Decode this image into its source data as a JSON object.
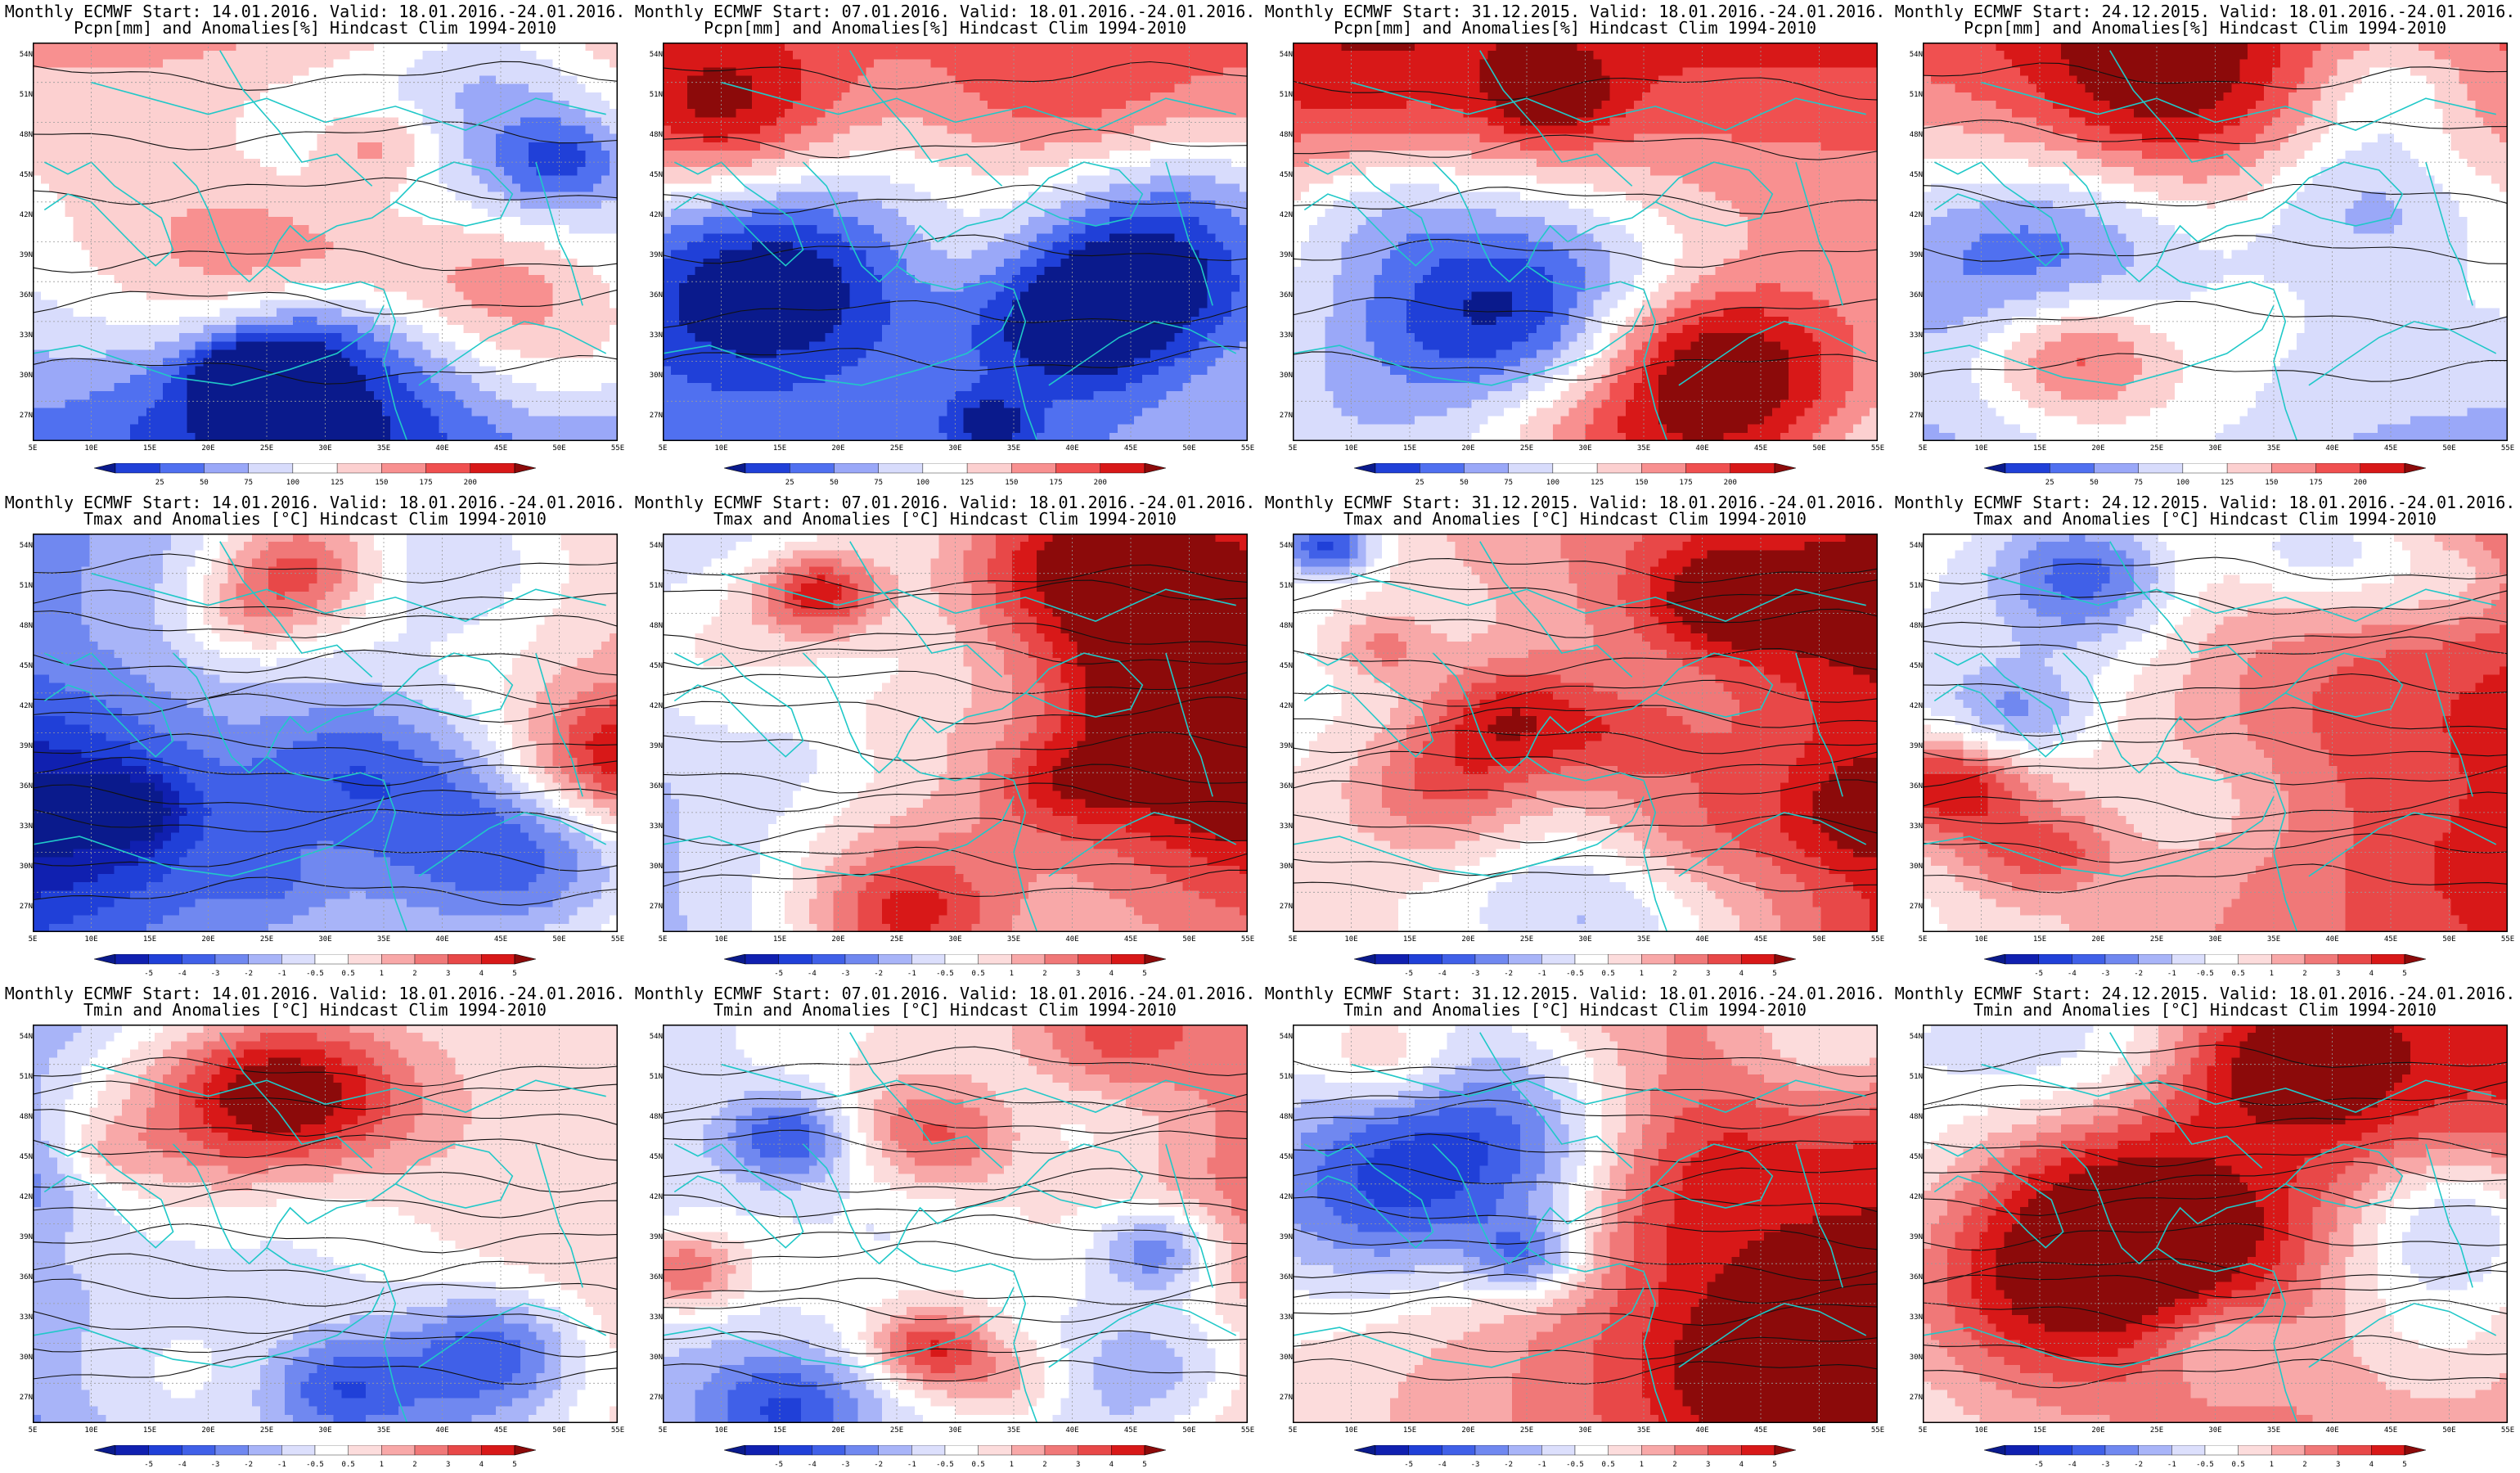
{
  "rows": [
    {
      "kind": "pcpn",
      "panels": [
        {
          "title1": "Monthly ECMWF Start: 14.01.2016. Valid: 18.01.2016.-24.01.2016.",
          "title2": "Pcpn[mm] and Anomalies[%] Hindcast Clim 1994-2010",
          "seed": 11,
          "bias": 0.25
        },
        {
          "title1": "Monthly ECMWF Start: 07.01.2016. Valid: 18.01.2016.-24.01.2016.",
          "title2": "Pcpn[mm] and Anomalies[%] Hindcast Clim 1994-2010",
          "seed": 23,
          "bias": 0.35
        },
        {
          "title1": "Monthly ECMWF Start: 31.12.2015. Valid: 18.01.2016.-24.01.2016.",
          "title2": "Pcpn[mm] and Anomalies[%] Hindcast Clim 1994-2010",
          "seed": 37,
          "bias": 0.55
        },
        {
          "title1": "Monthly ECMWF Start: 24.12.2015. Valid: 18.01.2016.-24.01.2016.",
          "title2": "Pcpn[mm] and Anomalies[%] Hindcast Clim 1994-2010",
          "seed": 41,
          "bias": 0.4
        }
      ],
      "colorbar": {
        "labels": [
          "25",
          "50",
          "75",
          "100",
          "125",
          "150",
          "175",
          "200"
        ],
        "colors": [
          "#0a1a8c",
          "#2040d8",
          "#5070f0",
          "#9aa8f8",
          "#d8dcfc",
          "#ffffff",
          "#fcd0d0",
          "#f89090",
          "#f05050",
          "#d81818",
          "#8c0a0a"
        ]
      }
    },
    {
      "kind": "tmax",
      "panels": [
        {
          "title1": "Monthly ECMWF Start: 14.01.2016. Valid: 18.01.2016.-24.01.2016.",
          "title2": "Tmax and Anomalies [°C] Hindcast Clim 1994-2010",
          "seed": 53,
          "bias": 0.25
        },
        {
          "title1": "Monthly ECMWF Start: 07.01.2016. Valid: 18.01.2016.-24.01.2016.",
          "title2": "Tmax and Anomalies [°C] Hindcast Clim 1994-2010",
          "seed": 61,
          "bias": 0.4
        },
        {
          "title1": "Monthly ECMWF Start: 31.12.2015. Valid: 18.01.2016.-24.01.2016.",
          "title2": "Tmax and Anomalies [°C] Hindcast Clim 1994-2010",
          "seed": 71,
          "bias": 0.68
        },
        {
          "title1": "Monthly ECMWF Start: 24.12.2015. Valid: 18.01.2016.-24.01.2016.",
          "title2": "Tmax and Anomalies [°C] Hindcast Clim 1994-2010",
          "seed": 83,
          "bias": 0.64
        }
      ],
      "colorbar": {
        "labels": [
          "-5",
          "-4",
          "-3",
          "-2",
          "-1",
          "-0.5",
          "0.5",
          "1",
          "2",
          "3",
          "4",
          "5"
        ],
        "colors": [
          "#0a1a8c",
          "#1020b0",
          "#2040d8",
          "#4060e8",
          "#7088f0",
          "#a8b4f8",
          "#dcdffc",
          "#ffffff",
          "#fcdcdc",
          "#f8a8a8",
          "#f07878",
          "#e84848",
          "#d81818",
          "#8c0a0a"
        ]
      }
    },
    {
      "kind": "tmin",
      "panels": [
        {
          "title1": "Monthly ECMWF Start: 14.01.2016. Valid: 18.01.2016.-24.01.2016.",
          "title2": "Tmin and Anomalies [°C] Hindcast Clim 1994-2010",
          "seed": 97,
          "bias": 0.22
        },
        {
          "title1": "Monthly ECMWF Start: 07.01.2016. Valid: 18.01.2016.-24.01.2016.",
          "title2": "Tmin and Anomalies [°C] Hindcast Clim 1994-2010",
          "seed": 101,
          "bias": 0.48
        },
        {
          "title1": "Monthly ECMWF Start: 31.12.2015. Valid: 18.01.2016.-24.01.2016.",
          "title2": "Tmin and Anomalies [°C] Hindcast Clim 1994-2010",
          "seed": 113,
          "bias": 0.7
        },
        {
          "title1": "Monthly ECMWF Start: 24.12.2015. Valid: 18.01.2016.-24.01.2016.",
          "title2": "Tmin and Anomalies [°C] Hindcast Clim 1994-2010",
          "seed": 127,
          "bias": 0.62
        }
      ],
      "colorbar": {
        "labels": [
          "-5",
          "-4",
          "-3",
          "-2",
          "-1",
          "-0.5",
          "0.5",
          "1",
          "2",
          "3",
          "4",
          "5"
        ],
        "colors": [
          "#0a1a8c",
          "#1020b0",
          "#2040d8",
          "#4060e8",
          "#7088f0",
          "#a8b4f8",
          "#dcdffc",
          "#ffffff",
          "#fcdcdc",
          "#f8a8a8",
          "#f07878",
          "#e84848",
          "#d81818",
          "#8c0a0a"
        ]
      }
    }
  ],
  "lat_labels": [
    "54N",
    "51N",
    "48N",
    "45N",
    "42N",
    "39N",
    "36N",
    "33N",
    "30N",
    "27N"
  ],
  "lon_labels": [
    "5E",
    "10E",
    "15E",
    "20E",
    "25E",
    "30E",
    "35E",
    "40E",
    "45E",
    "50E",
    "55E"
  ],
  "coast_color": "#20c8c8"
}
